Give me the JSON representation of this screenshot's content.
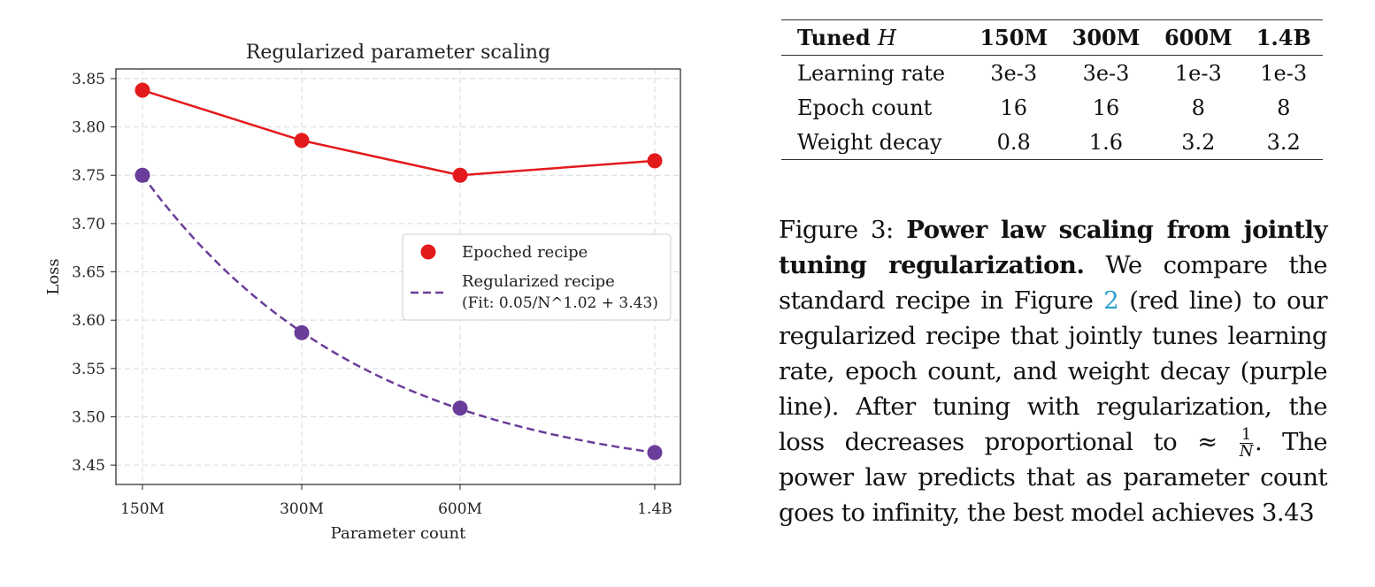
{
  "chart_data": {
    "type": "line",
    "title": "Regularized parameter scaling",
    "xlabel": "Parameter count",
    "ylabel": "Loss",
    "categories": [
      "150M",
      "300M",
      "600M",
      "1.4B"
    ],
    "ylim": [
      3.43,
      3.86
    ],
    "yticks": [
      "3.45",
      "3.50",
      "3.55",
      "3.60",
      "3.65",
      "3.70",
      "3.75",
      "3.80",
      "3.85"
    ],
    "grid": true,
    "legend_position": "center-right",
    "series": [
      {
        "name": "Epoched recipe",
        "values": [
          3.838,
          3.786,
          3.75,
          3.765
        ],
        "color": "#e31a1c",
        "line": "solid",
        "marker": "circle"
      },
      {
        "name": "Regularized recipe",
        "fit_label": "(Fit: 0.05/N^1.02 + 3.43)",
        "values": [
          3.75,
          3.587,
          3.509,
          3.463
        ],
        "color": "#6a3d9a",
        "line": "dashed",
        "marker": "circle",
        "fit": {
          "a": 0.05,
          "b": 1.02,
          "c": 3.43
        }
      }
    ]
  },
  "table": {
    "header_label": "Tuned",
    "header_var": "H",
    "columns": [
      "150M",
      "300M",
      "600M",
      "1.4B"
    ],
    "rows": [
      {
        "label": "Learning rate",
        "values": [
          "3e-3",
          "3e-3",
          "1e-3",
          "1e-3"
        ]
      },
      {
        "label": "Epoch count",
        "values": [
          "16",
          "16",
          "8",
          "8"
        ]
      },
      {
        "label": "Weight decay",
        "values": [
          "0.8",
          "1.6",
          "3.2",
          "3.2"
        ]
      }
    ]
  },
  "caption": {
    "figure_label": "Figure 3:",
    "bold_title": "Power law scaling from jointly tuning regularization.",
    "text_1": "We compare the standard recipe in Figure",
    "figure_ref": "2",
    "text_2": "(red line) to our regularized recipe that jointly tunes learning rate, epoch count, and weight decay (purple line). After tuning with regularization, the loss decreases proportional to ≈",
    "frac_num": "1",
    "frac_den": "N",
    "text_3": ". The power law predicts that as parameter count goes to infinity, the best model achieves 3.43"
  }
}
